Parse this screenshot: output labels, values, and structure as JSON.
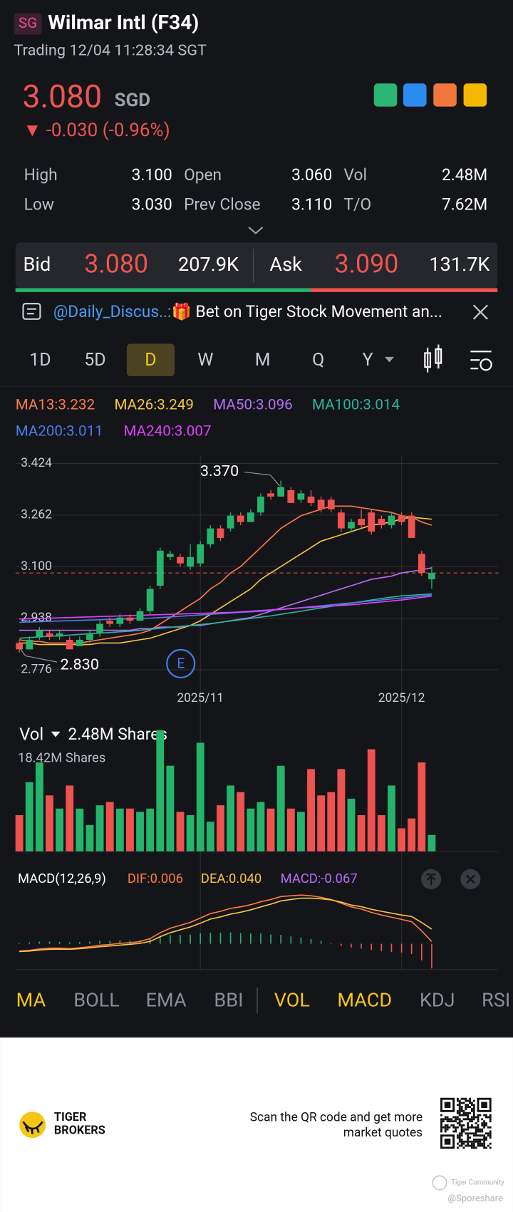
{
  "header": {
    "exchange": "SG",
    "title": "Wilmar Intl (F34)",
    "status": "Trading 12/04 11:28:34 SGT"
  },
  "quote": {
    "price": "3.080",
    "currency": "SGD",
    "change": "▼ -0.030 (-0.96%)"
  },
  "stats": [
    [
      "High",
      "3.100",
      "Open",
      "3.060",
      "Vol",
      "2.48M"
    ],
    [
      "Low",
      "3.030",
      "Prev Close",
      "3.110",
      "T/O",
      "7.62M"
    ]
  ],
  "orderbook": {
    "bid_label": "Bid",
    "bid": "3.080",
    "bid_size": "207.9K",
    "ask_label": "Ask",
    "ask": "3.090",
    "ask_size": "131.7K"
  },
  "ticker": {
    "user": "@Daily_Discus..:",
    "text": "🎁 Bet on Tiger Stock Movement an..."
  },
  "periods": [
    "1D",
    "5D",
    "D",
    "W",
    "M",
    "Q",
    "Y"
  ],
  "active_period": "D",
  "chart_data": {
    "type": "candlestick",
    "categories": [
      null,
      null,
      null,
      null,
      null,
      null,
      null,
      null,
      null,
      null,
      null,
      null,
      null,
      null,
      null,
      null,
      null,
      null,
      "2025/11",
      null,
      null,
      null,
      null,
      null,
      null,
      null,
      null,
      null,
      null,
      null,
      null,
      null,
      null,
      null,
      null,
      null,
      null,
      null,
      "2025/12",
      null,
      null,
      null
    ],
    "open": [
      2.86,
      2.84,
      2.88,
      2.89,
      2.88,
      2.87,
      2.85,
      2.87,
      2.89,
      2.93,
      2.92,
      2.94,
      2.93,
      2.96,
      3.04,
      3.13,
      3.13,
      3.1,
      3.11,
      3.17,
      3.22,
      3.22,
      3.26,
      3.24,
      3.27,
      3.33,
      3.32,
      3.34,
      3.31,
      3.32,
      3.31,
      3.31,
      3.27,
      3.22,
      3.25,
      3.27,
      3.25,
      3.23,
      3.26,
      3.26,
      3.14,
      3.06
    ],
    "high": [
      2.87,
      2.88,
      2.91,
      2.9,
      2.9,
      2.88,
      2.88,
      2.9,
      2.93,
      2.94,
      2.95,
      2.95,
      2.97,
      3.04,
      3.16,
      3.15,
      3.14,
      3.17,
      3.18,
      3.23,
      3.23,
      3.27,
      3.27,
      3.28,
      3.33,
      3.34,
      3.37,
      3.35,
      3.34,
      3.34,
      3.32,
      3.32,
      3.28,
      3.25,
      3.28,
      3.28,
      3.26,
      3.27,
      3.27,
      3.27,
      3.15,
      3.1
    ],
    "low": [
      2.83,
      2.84,
      2.87,
      2.87,
      2.87,
      2.84,
      2.85,
      2.86,
      2.88,
      2.91,
      2.91,
      2.92,
      2.93,
      2.95,
      3.03,
      3.12,
      3.1,
      3.09,
      3.1,
      3.16,
      3.18,
      3.21,
      3.23,
      3.24,
      3.26,
      3.31,
      3.32,
      3.3,
      3.3,
      3.29,
      3.27,
      3.27,
      3.21,
      3.21,
      3.22,
      3.2,
      3.22,
      3.22,
      3.23,
      3.19,
      3.07,
      3.03
    ],
    "close": [
      2.84,
      2.87,
      2.9,
      2.88,
      2.89,
      2.84,
      2.87,
      2.89,
      2.92,
      2.92,
      2.94,
      2.93,
      2.96,
      3.03,
      3.15,
      3.14,
      3.11,
      3.13,
      3.17,
      3.22,
      3.19,
      3.26,
      3.24,
      3.27,
      3.32,
      3.32,
      3.35,
      3.3,
      3.33,
      3.3,
      3.28,
      3.28,
      3.22,
      3.24,
      3.23,
      3.21,
      3.23,
      3.26,
      3.24,
      3.19,
      3.08,
      3.08
    ],
    "up_color": "#26b36c",
    "down_color": "#ef5350",
    "series": [
      {
        "name": "MA13:3.232",
        "color": "#ff7a45",
        "values": [
          2.87,
          2.865,
          2.865,
          2.86,
          2.86,
          2.86,
          2.86,
          2.865,
          2.87,
          2.875,
          2.88,
          2.885,
          2.89,
          2.9,
          2.92,
          2.94,
          2.96,
          2.98,
          3.0,
          3.03,
          3.05,
          3.08,
          3.1,
          3.13,
          3.16,
          3.19,
          3.22,
          3.24,
          3.26,
          3.27,
          3.28,
          3.29,
          3.29,
          3.29,
          3.285,
          3.28,
          3.275,
          3.27,
          3.26,
          3.255,
          3.24,
          3.23
        ]
      },
      {
        "name": "MA26:3.249",
        "color": "#f5c542",
        "values": [
          2.86,
          2.86,
          2.855,
          2.855,
          2.855,
          2.855,
          2.855,
          2.855,
          2.86,
          2.86,
          2.86,
          2.865,
          2.87,
          2.875,
          2.885,
          2.895,
          2.905,
          2.915,
          2.93,
          2.95,
          2.97,
          2.99,
          3.01,
          3.03,
          3.06,
          3.08,
          3.1,
          3.12,
          3.14,
          3.16,
          3.18,
          3.19,
          3.2,
          3.21,
          3.22,
          3.23,
          3.235,
          3.24,
          3.25,
          3.255,
          3.252,
          3.249
        ]
      },
      {
        "name": "MA50:3.096",
        "color": "#b86cf5",
        "values": [
          2.9,
          2.9,
          2.9,
          2.9,
          2.9,
          2.9,
          2.9,
          2.9,
          2.9,
          2.9,
          2.9,
          2.9,
          2.905,
          2.905,
          2.91,
          2.91,
          2.91,
          2.915,
          2.915,
          2.92,
          2.925,
          2.93,
          2.935,
          2.94,
          2.95,
          2.96,
          2.97,
          2.98,
          2.99,
          3.0,
          3.01,
          3.02,
          3.03,
          3.04,
          3.05,
          3.06,
          3.065,
          3.07,
          3.08,
          3.085,
          3.09,
          3.096
        ]
      },
      {
        "name": "MA100:3.014",
        "color": "#2bb39a",
        "values": [
          2.875,
          2.877,
          2.879,
          2.881,
          2.883,
          2.885,
          2.887,
          2.889,
          2.891,
          2.893,
          2.895,
          2.897,
          2.9,
          2.903,
          2.906,
          2.909,
          2.912,
          2.915,
          2.918,
          2.921,
          2.925,
          2.929,
          2.933,
          2.937,
          2.941,
          2.945,
          2.95,
          2.955,
          2.96,
          2.965,
          2.97,
          2.975,
          2.98,
          2.985,
          2.99,
          2.995,
          3.0,
          3.004,
          3.008,
          3.01,
          3.012,
          3.014
        ]
      },
      {
        "name": "MA200:3.011",
        "color": "#4a7cf0",
        "values": [
          2.925,
          2.926,
          2.927,
          2.928,
          2.929,
          2.93,
          2.931,
          2.932,
          2.933,
          2.934,
          2.935,
          2.936,
          2.937,
          2.938,
          2.94,
          2.942,
          2.944,
          2.946,
          2.948,
          2.95,
          2.952,
          2.954,
          2.956,
          2.958,
          2.96,
          2.962,
          2.965,
          2.968,
          2.971,
          2.974,
          2.977,
          2.98,
          2.983,
          2.986,
          2.989,
          2.992,
          2.995,
          2.998,
          3.001,
          3.004,
          3.008,
          3.011
        ]
      },
      {
        "name": "MA240:3.007",
        "color": "#e040fb",
        "values": [
          2.935,
          2.936,
          2.937,
          2.938,
          2.939,
          2.94,
          2.941,
          2.942,
          2.943,
          2.944,
          2.945,
          2.946,
          2.947,
          2.948,
          2.949,
          2.95,
          2.951,
          2.952,
          2.953,
          2.954,
          2.955,
          2.956,
          2.958,
          2.96,
          2.962,
          2.964,
          2.966,
          2.968,
          2.97,
          2.972,
          2.974,
          2.976,
          2.978,
          2.98,
          2.983,
          2.986,
          2.989,
          2.992,
          2.995,
          2.999,
          3.003,
          3.007
        ]
      }
    ],
    "price_line": 3.08,
    "ylim": [
      2.732,
      3.448
    ],
    "yticks": [
      3.424,
      3.262,
      {
        "value": 3.1,
        "label": "3.100"
      },
      2.938,
      2.776
    ],
    "grid": true,
    "annotations": [
      "3.370",
      "2.830"
    ],
    "earnings_marker": "E"
  },
  "volume_chart": {
    "type": "bar",
    "label": "Vol",
    "value": "2.48M Shares",
    "max_label": "18.42M Shares",
    "values": [
      5.5,
      10.5,
      13.5,
      8.5,
      6.5,
      10,
      6.5,
      4,
      7,
      7.5,
      6.5,
      6.5,
      6,
      6.5,
      18.4,
      13,
      6,
      5.5,
      16.5,
      4.5,
      7,
      10,
      9,
      6.5,
      7.5,
      6.5,
      13,
      6.5,
      6,
      12.5,
      8.5,
      9,
      12.5,
      8,
      5.5,
      15.5,
      5.5,
      10,
      3.5,
      5,
      13.5,
      2.5
    ],
    "ylim": [
      0,
      18.42
    ]
  },
  "macd_chart": {
    "type": "macd",
    "title": "MACD(12,26,9)",
    "dif_label": "DIF:0.006",
    "dea_label": "DEA:0.040",
    "macd_label": "MACD:-0.067",
    "dif_color": "#ff7a45",
    "dea_color": "#f5c542",
    "macd_color": "#b86cf5",
    "histogram": [
      0.002,
      0.004,
      0.006,
      0.006,
      0.005,
      0.004,
      0.005,
      0.006,
      0.008,
      0.008,
      0.009,
      0.009,
      0.01,
      0.015,
      0.022,
      0.024,
      0.024,
      0.025,
      0.028,
      0.03,
      0.03,
      0.031,
      0.029,
      0.028,
      0.028,
      0.025,
      0.024,
      0.02,
      0.017,
      0.013,
      0.008,
      0.002,
      -0.006,
      -0.01,
      -0.013,
      -0.017,
      -0.02,
      -0.022,
      -0.024,
      -0.028,
      -0.045,
      -0.067
    ],
    "dif": [
      -0.02,
      -0.018,
      -0.014,
      -0.012,
      -0.012,
      -0.013,
      -0.011,
      -0.008,
      -0.004,
      -0.002,
      0.001,
      0.003,
      0.006,
      0.014,
      0.03,
      0.042,
      0.05,
      0.058,
      0.07,
      0.082,
      0.088,
      0.096,
      0.1,
      0.106,
      0.114,
      0.12,
      0.128,
      0.13,
      0.132,
      0.13,
      0.126,
      0.12,
      0.11,
      0.1,
      0.094,
      0.085,
      0.078,
      0.072,
      0.066,
      0.06,
      0.035,
      0.006
    ],
    "dea": [
      -0.021,
      -0.02,
      -0.017,
      -0.015,
      -0.0145,
      -0.015,
      -0.0135,
      -0.011,
      -0.008,
      -0.006,
      -0.0035,
      -0.0015,
      0.001,
      0.0065,
      0.019,
      0.03,
      0.038,
      0.0455,
      0.056,
      0.067,
      0.073,
      0.0805,
      0.0855,
      0.092,
      0.1,
      0.1075,
      0.116,
      0.12,
      0.1235,
      0.1235,
      0.122,
      0.119,
      0.113,
      0.105,
      0.1005,
      0.0935,
      0.088,
      0.083,
      0.078,
      0.074,
      0.0575,
      0.0395
    ],
    "ylim": [
      -0.07,
      0.15
    ]
  },
  "indicators": [
    "MA",
    "BOLL",
    "EMA",
    "BBI",
    "VOL",
    "MACD",
    "KDJ",
    "RSI"
  ],
  "active_indicators": [
    "MA",
    "VOL",
    "MACD"
  ],
  "footer": {
    "brand": [
      "TIGER",
      "BROKERS"
    ],
    "qr_text": [
      "Scan the QR code and get more",
      "market quotes"
    ],
    "watermark": "Tiger Community",
    "handle": "@Sporeshare"
  }
}
